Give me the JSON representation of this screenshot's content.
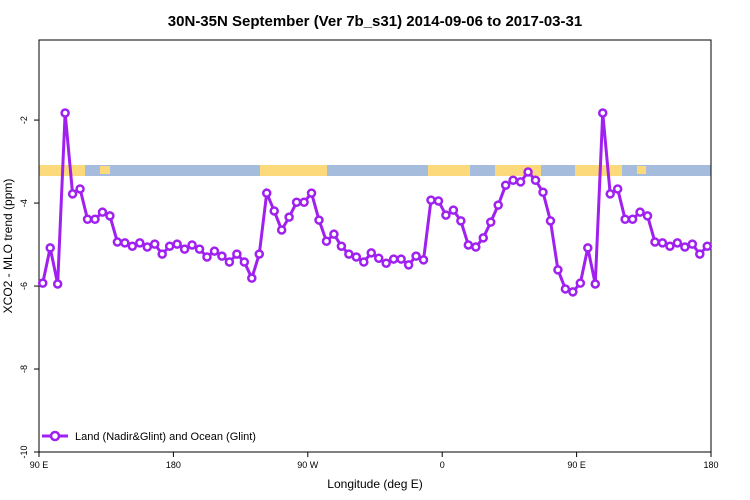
{
  "chart_data": {
    "type": "line",
    "title": "30N-35N September (Ver 7b_s31)   2014-09-06 to 2017-03-31",
    "x_label": "Longitude (deg E)",
    "y_label": "XCO2 - MLO trend (ppm)",
    "xlim": [
      90,
      540
    ],
    "ylim": [
      -10,
      -0.07
    ],
    "xticks": [
      {
        "value": 90,
        "label": "90 E"
      },
      180,
      {
        "value": 270,
        "label": "90 W"
      },
      {
        "value": 360,
        "label": "0"
      },
      {
        "value": 450,
        "label": "90 E"
      },
      {
        "value": 540,
        "label": "180"
      }
    ],
    "yticks": [
      -10,
      -8,
      -6,
      -4,
      -2
    ],
    "legend": "bottom-left",
    "x": [
      92.5,
      97.5,
      102.5,
      107.5,
      112.5,
      117.5,
      122.5,
      127.5,
      132.5,
      137.5,
      142.5,
      147.5,
      152.5,
      157.5,
      162.5,
      167.5,
      172.5,
      177.5,
      182.5,
      187.5,
      192.5,
      197.5,
      202.5,
      207.5,
      212.5,
      217.5,
      222.5,
      227.5,
      232.5,
      237.5,
      242.5,
      247.5,
      252.5,
      257.5,
      262.5,
      267.5,
      272.5,
      277.5,
      282.5,
      287.5,
      292.5,
      297.5,
      302.5,
      307.5,
      312.5,
      317.5,
      322.5,
      327.5,
      332.5,
      337.5,
      342.5,
      347.5,
      352.5,
      357.5,
      362.5,
      367.5,
      372.5,
      377.5,
      382.5,
      387.5,
      392.5,
      397.5,
      402.5,
      407.5,
      412.5,
      417.5,
      422.5,
      427.5,
      432.5,
      437.5,
      442.5,
      447.5,
      452.5,
      457.5,
      462.5,
      467.5,
      472.5,
      477.5,
      482.5,
      487.5,
      492.5,
      497.5,
      502.5,
      507.5,
      512.5,
      517.5,
      522.5,
      527.5,
      532.5,
      537.5
    ],
    "series": [
      {
        "name": "Land (Nadir&Glint) and Ocean (Glint)",
        "color": "#a020f0",
        "values": [
          -5.93,
          -5.08,
          -5.95,
          -1.83,
          -3.78,
          -3.66,
          -4.39,
          -4.39,
          -4.22,
          -4.31,
          -4.94,
          -4.96,
          -5.04,
          -4.96,
          -5.06,
          -4.99,
          -5.23,
          -5.04,
          -4.99,
          -5.11,
          -5.01,
          -5.11,
          -5.3,
          -5.16,
          -5.28,
          -5.42,
          -5.23,
          -5.42,
          -5.81,
          -5.23,
          -3.76,
          -4.19,
          -4.65,
          -4.34,
          -3.98,
          -3.98,
          -3.76,
          -4.41,
          -4.92,
          -4.75,
          -5.04,
          -5.23,
          -5.3,
          -5.42,
          -5.2,
          -5.33,
          -5.45,
          -5.35,
          -5.35,
          -5.49,
          -5.28,
          -5.37,
          -3.93,
          -3.95,
          -4.29,
          -4.17,
          -4.43,
          -5.01,
          -5.06,
          -4.84,
          -4.46,
          -4.05,
          -3.57,
          -3.45,
          -3.49,
          -3.25,
          -3.45,
          -3.74,
          -4.43,
          -5.61,
          -6.07,
          -6.14,
          -5.93,
          -5.08,
          -5.95,
          -1.83,
          -3.78,
          -3.66,
          -4.39,
          -4.39,
          -4.22,
          -4.31,
          -4.94,
          -4.96,
          -5.04,
          -4.96,
          -5.06,
          -4.99,
          -5.23,
          -5.04
        ]
      }
    ]
  }
}
